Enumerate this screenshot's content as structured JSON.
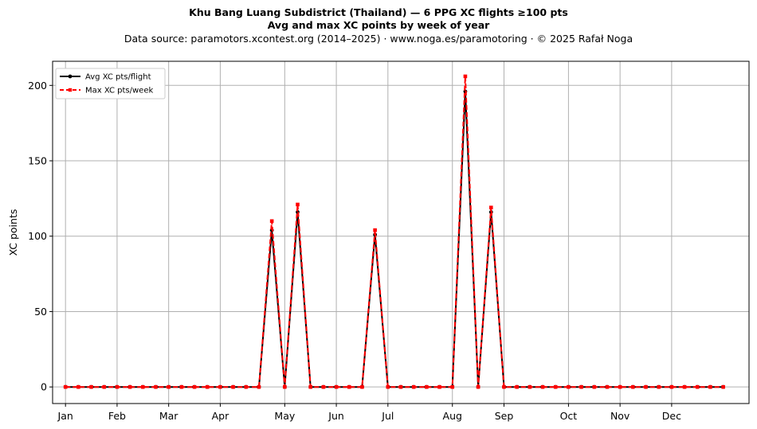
{
  "header": {
    "title": "Khu Bang Luang Subdistrict (Thailand)  —  6 PPG XC flights ≥100 pts",
    "subtitle": "Avg and max XC points by week of year",
    "source": "Data source: paramotors.xcontest.org (2014–2025)  ·  www.noga.es/paramotoring  ·  © 2025 Rafał Noga"
  },
  "chart_data": {
    "type": "line",
    "title": "Khu Bang Luang Subdistrict (Thailand)  —  6 PPG XC flights ≥100 pts",
    "subtitle": "Avg and max XC points by week of year",
    "xlabel": "",
    "ylabel": "XC points",
    "xlim": [
      0,
      54
    ],
    "ylim": [
      -11,
      216
    ],
    "yticks": [
      0,
      50,
      100,
      150,
      200
    ],
    "xticks": [
      {
        "label": "Jan",
        "week": 1
      },
      {
        "label": "Feb",
        "week": 5
      },
      {
        "label": "Mar",
        "week": 9
      },
      {
        "label": "Apr",
        "week": 13
      },
      {
        "label": "May",
        "week": 18
      },
      {
        "label": "Jun",
        "week": 22
      },
      {
        "label": "Jul",
        "week": 26
      },
      {
        "label": "Aug",
        "week": 31
      },
      {
        "label": "Sep",
        "week": 35
      },
      {
        "label": "Oct",
        "week": 40
      },
      {
        "label": "Nov",
        "week": 44
      },
      {
        "label": "Dec",
        "week": 48
      }
    ],
    "grid": true,
    "legend_position": "top-left",
    "x": [
      1,
      2,
      3,
      4,
      5,
      6,
      7,
      8,
      9,
      10,
      11,
      12,
      13,
      14,
      15,
      16,
      17,
      18,
      19,
      20,
      21,
      22,
      23,
      24,
      25,
      26,
      27,
      28,
      29,
      30,
      31,
      32,
      33,
      34,
      35,
      36,
      37,
      38,
      39,
      40,
      41,
      42,
      43,
      44,
      45,
      46,
      47,
      48,
      49,
      50,
      51,
      52
    ],
    "series": [
      {
        "name": "Avg XC pts/flight",
        "color": "#000000",
        "style": "solid",
        "marker": "circle",
        "values": [
          0,
          0,
          0,
          0,
          0,
          0,
          0,
          0,
          0,
          0,
          0,
          0,
          0,
          0,
          0,
          0,
          104,
          0,
          116,
          0,
          0,
          0,
          0,
          0,
          101,
          0,
          0,
          0,
          0,
          0,
          0,
          196,
          0,
          116,
          0,
          0,
          0,
          0,
          0,
          0,
          0,
          0,
          0,
          0,
          0,
          0,
          0,
          0,
          0,
          0,
          0,
          0
        ]
      },
      {
        "name": "Max XC pts/week",
        "color": "#ff0000",
        "style": "dashed",
        "marker": "square",
        "values": [
          0,
          0,
          0,
          0,
          0,
          0,
          0,
          0,
          0,
          0,
          0,
          0,
          0,
          0,
          0,
          0,
          110,
          0,
          121,
          0,
          0,
          0,
          0,
          0,
          104,
          0,
          0,
          0,
          0,
          0,
          0,
          206,
          0,
          119,
          0,
          0,
          0,
          0,
          0,
          0,
          0,
          0,
          0,
          0,
          0,
          0,
          0,
          0,
          0,
          0,
          0,
          0
        ]
      }
    ]
  }
}
